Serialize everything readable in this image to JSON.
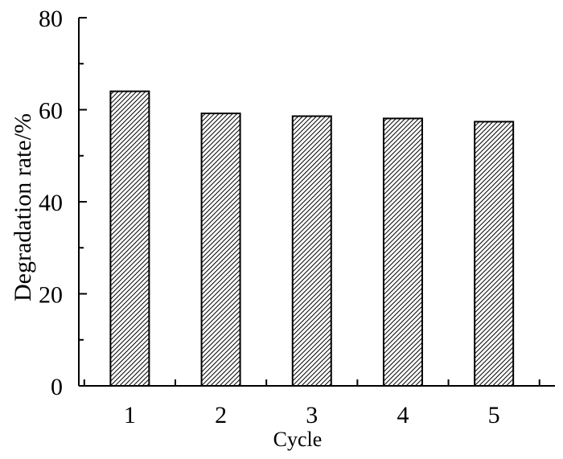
{
  "chart_data": {
    "type": "bar",
    "title": "",
    "xlabel": "Cycle",
    "ylabel": "Degradation rate/%",
    "categories": [
      "1",
      "2",
      "3",
      "4",
      "5"
    ],
    "series": [
      {
        "values": [
          64.0,
          59.2,
          58.6,
          58.1,
          57.4
        ]
      }
    ],
    "ylim": [
      0,
      80
    ],
    "yticks": [
      "0",
      "20",
      "40",
      "60",
      "80"
    ],
    "grid": false,
    "legend": "none",
    "bar_fill": "diagonal-hatch",
    "colors": {
      "bar_stroke": "#000000",
      "hatch": "#000000",
      "background": "#ffffff"
    }
  }
}
